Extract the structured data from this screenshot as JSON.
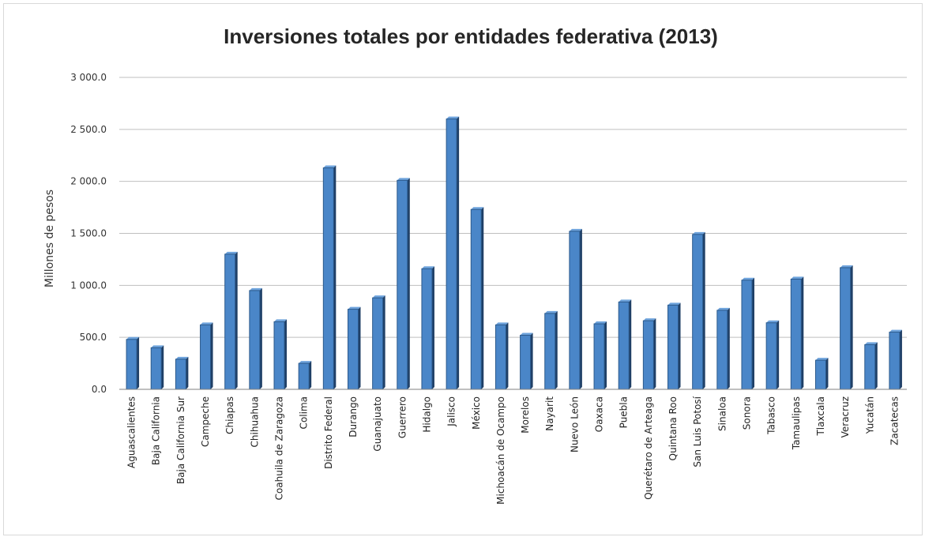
{
  "chart_data": {
    "type": "bar",
    "title": "Inversiones totales por entidades federativa (2013)",
    "xlabel": "",
    "ylabel": "Millones de pesos",
    "ylim": [
      0,
      3000
    ],
    "yticks": [
      "0.0",
      "500.0",
      "1 000.0",
      "1 500.0",
      "2 000.0",
      "2 500.0",
      "3 000.0"
    ],
    "grid": true,
    "legend": "none",
    "bar_color": "#4a86c8",
    "bar_side_color": "#1f3f66",
    "categories": [
      "Aguascalientes",
      "Baja California",
      "Baja California Sur",
      "Campeche",
      "Chiapas",
      "Chihuahua",
      "Coahuila de Zaragoza",
      "Colima",
      "Distrito Federal",
      "Durango",
      "Guanajuato",
      "Guerrero",
      "Hidalgo",
      "Jalisco",
      "México",
      "Michoacán de Ocampo",
      "Morelos",
      "Nayarit",
      "Nuevo León",
      "Oaxaca",
      "Puebla",
      "Querétaro de Arteaga",
      "Quintana Roo",
      "San Luis Potosí",
      "Sinaloa",
      "Sonora",
      "Tabasco",
      "Tamaulipas",
      "Tlaxcala",
      "Veracruz",
      "Yucatán",
      "Zacatecas"
    ],
    "values": [
      480,
      400,
      290,
      620,
      1300,
      950,
      650,
      250,
      2130,
      770,
      880,
      2010,
      1160,
      2600,
      1730,
      620,
      520,
      730,
      1520,
      630,
      840,
      660,
      810,
      1490,
      760,
      1050,
      640,
      1060,
      280,
      1170,
      430,
      550
    ]
  }
}
